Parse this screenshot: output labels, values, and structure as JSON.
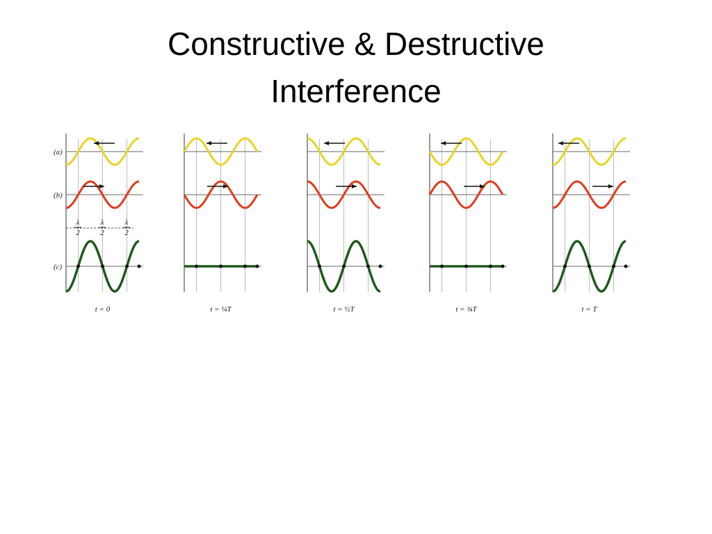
{
  "header": {
    "title_lines": [
      "Constructive  & Destructive",
      "Interference"
    ]
  },
  "diagram": {
    "row_labels": [
      "(a)",
      "(b)",
      "(c)"
    ],
    "half_wavelength_labels": [
      {
        "numerator": "λ",
        "denominator": "2"
      },
      {
        "numerator": "λ",
        "denominator": "2"
      },
      {
        "numerator": "λ",
        "denominator": "2"
      }
    ],
    "panels": [
      {
        "time_label": "t = 0"
      },
      {
        "time_label": "t = ¼T"
      },
      {
        "time_label": "t = ½T"
      },
      {
        "time_label": "t = ¾T"
      },
      {
        "time_label": "t = T"
      }
    ]
  }
}
